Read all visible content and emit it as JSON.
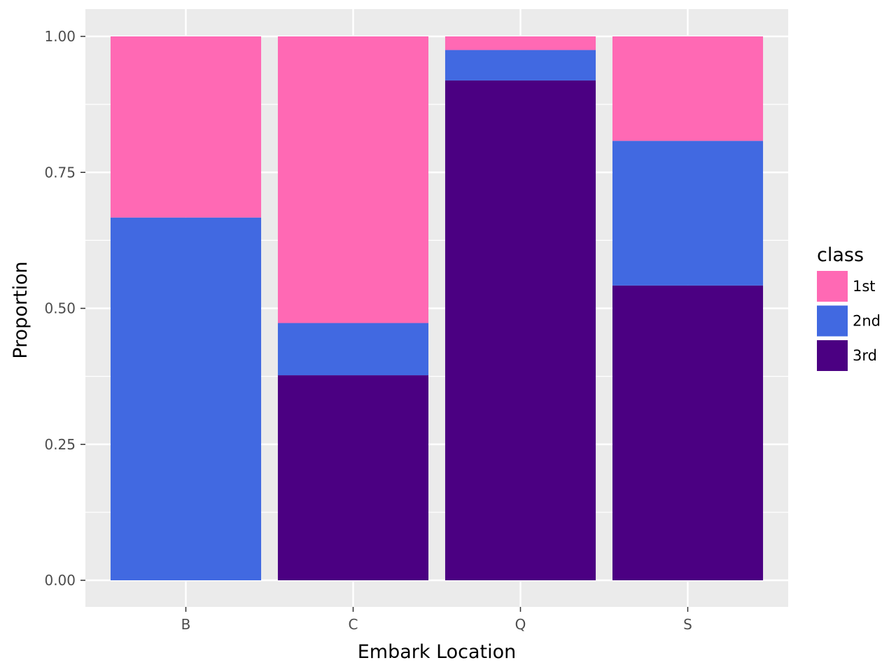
{
  "chart_data": {
    "type": "bar",
    "stacked": true,
    "title": "",
    "xlabel": "Embark Location",
    "ylabel": "Proportion",
    "categories": [
      "B",
      "C",
      "Q",
      "S"
    ],
    "ylim": [
      0,
      1
    ],
    "yticks": [
      "0.00",
      "0.25",
      "0.50",
      "0.75",
      "1.00"
    ],
    "grid": true,
    "legend_title": "class",
    "legend_position": "right",
    "series": [
      {
        "name": "1st",
        "color": "#ff69b4",
        "values": [
          0.333,
          0.527,
          0.025,
          0.192
        ]
      },
      {
        "name": "2nd",
        "color": "#4169e1",
        "values": [
          0.667,
          0.096,
          0.056,
          0.266
        ]
      },
      {
        "name": "3rd",
        "color": "#4b0082",
        "values": [
          0.0,
          0.377,
          0.919,
          0.542
        ]
      }
    ]
  }
}
